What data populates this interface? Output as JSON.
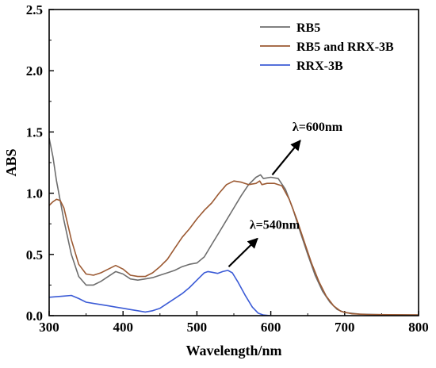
{
  "chart_data": {
    "type": "line",
    "xlabel": "Wavelength/nm",
    "ylabel": "ABS",
    "xlim": [
      300,
      800
    ],
    "ylim": [
      0.0,
      2.5
    ],
    "xticks": [
      "300",
      "400",
      "500",
      "600",
      "700",
      "800"
    ],
    "yticks": [
      "0.0",
      "0.5",
      "1.0",
      "1.5",
      "2.0",
      "2.5"
    ],
    "legend_position": "top-right",
    "series": [
      {
        "name": "RB5",
        "color": "#6e6e6e",
        "points": [
          [
            300,
            1.45
          ],
          [
            305,
            1.3
          ],
          [
            310,
            1.1
          ],
          [
            320,
            0.78
          ],
          [
            330,
            0.5
          ],
          [
            340,
            0.32
          ],
          [
            350,
            0.25
          ],
          [
            360,
            0.25
          ],
          [
            370,
            0.28
          ],
          [
            380,
            0.32
          ],
          [
            390,
            0.36
          ],
          [
            400,
            0.34
          ],
          [
            410,
            0.3
          ],
          [
            420,
            0.29
          ],
          [
            430,
            0.3
          ],
          [
            440,
            0.31
          ],
          [
            450,
            0.33
          ],
          [
            460,
            0.35
          ],
          [
            470,
            0.37
          ],
          [
            480,
            0.4
          ],
          [
            490,
            0.42
          ],
          [
            500,
            0.43
          ],
          [
            510,
            0.48
          ],
          [
            520,
            0.58
          ],
          [
            530,
            0.68
          ],
          [
            540,
            0.78
          ],
          [
            550,
            0.88
          ],
          [
            560,
            0.98
          ],
          [
            570,
            1.07
          ],
          [
            580,
            1.13
          ],
          [
            586,
            1.15
          ],
          [
            590,
            1.12
          ],
          [
            600,
            1.13
          ],
          [
            610,
            1.12
          ],
          [
            620,
            1.03
          ],
          [
            630,
            0.87
          ],
          [
            640,
            0.68
          ],
          [
            650,
            0.5
          ],
          [
            660,
            0.33
          ],
          [
            670,
            0.2
          ],
          [
            680,
            0.11
          ],
          [
            690,
            0.05
          ],
          [
            700,
            0.025
          ],
          [
            720,
            0.012
          ],
          [
            750,
            0.008
          ],
          [
            800,
            0.005
          ]
        ]
      },
      {
        "name": "RB5 and RRX-3B",
        "color": "#9c5a33",
        "points": [
          [
            300,
            0.9
          ],
          [
            305,
            0.93
          ],
          [
            310,
            0.95
          ],
          [
            315,
            0.94
          ],
          [
            320,
            0.88
          ],
          [
            330,
            0.62
          ],
          [
            340,
            0.42
          ],
          [
            350,
            0.34
          ],
          [
            360,
            0.33
          ],
          [
            370,
            0.35
          ],
          [
            380,
            0.38
          ],
          [
            390,
            0.41
          ],
          [
            400,
            0.38
          ],
          [
            410,
            0.33
          ],
          [
            420,
            0.32
          ],
          [
            430,
            0.32
          ],
          [
            440,
            0.35
          ],
          [
            450,
            0.4
          ],
          [
            460,
            0.46
          ],
          [
            470,
            0.55
          ],
          [
            480,
            0.64
          ],
          [
            490,
            0.71
          ],
          [
            500,
            0.79
          ],
          [
            510,
            0.86
          ],
          [
            520,
            0.92
          ],
          [
            530,
            1.0
          ],
          [
            540,
            1.07
          ],
          [
            550,
            1.1
          ],
          [
            560,
            1.09
          ],
          [
            570,
            1.07
          ],
          [
            580,
            1.08
          ],
          [
            585,
            1.1
          ],
          [
            588,
            1.07
          ],
          [
            595,
            1.08
          ],
          [
            605,
            1.08
          ],
          [
            615,
            1.06
          ],
          [
            625,
            0.95
          ],
          [
            635,
            0.79
          ],
          [
            645,
            0.61
          ],
          [
            655,
            0.43
          ],
          [
            665,
            0.28
          ],
          [
            675,
            0.16
          ],
          [
            685,
            0.08
          ],
          [
            695,
            0.035
          ],
          [
            710,
            0.015
          ],
          [
            730,
            0.01
          ],
          [
            760,
            0.008
          ],
          [
            800,
            0.006
          ]
        ]
      },
      {
        "name": "RRX-3B",
        "color": "#3b5bd6",
        "points": [
          [
            300,
            0.15
          ],
          [
            310,
            0.155
          ],
          [
            320,
            0.16
          ],
          [
            330,
            0.165
          ],
          [
            340,
            0.14
          ],
          [
            350,
            0.11
          ],
          [
            360,
            0.1
          ],
          [
            370,
            0.09
          ],
          [
            380,
            0.08
          ],
          [
            390,
            0.07
          ],
          [
            400,
            0.06
          ],
          [
            410,
            0.05
          ],
          [
            420,
            0.04
          ],
          [
            430,
            0.03
          ],
          [
            440,
            0.04
          ],
          [
            450,
            0.06
          ],
          [
            460,
            0.1
          ],
          [
            470,
            0.14
          ],
          [
            480,
            0.18
          ],
          [
            490,
            0.23
          ],
          [
            500,
            0.29
          ],
          [
            510,
            0.35
          ],
          [
            515,
            0.36
          ],
          [
            520,
            0.355
          ],
          [
            528,
            0.345
          ],
          [
            535,
            0.36
          ],
          [
            542,
            0.37
          ],
          [
            548,
            0.35
          ],
          [
            555,
            0.28
          ],
          [
            565,
            0.17
          ],
          [
            575,
            0.07
          ],
          [
            583,
            0.02
          ],
          [
            590,
            0.005
          ],
          [
            600,
            0.0
          ]
        ]
      }
    ],
    "annotations": [
      {
        "text": "λ=600nm",
        "from": [
          602,
          1.15
        ],
        "to": [
          640,
          1.43
        ]
      },
      {
        "text": "λ=540nm",
        "from": [
          543,
          0.4
        ],
        "to": [
          582,
          0.63
        ]
      }
    ]
  }
}
